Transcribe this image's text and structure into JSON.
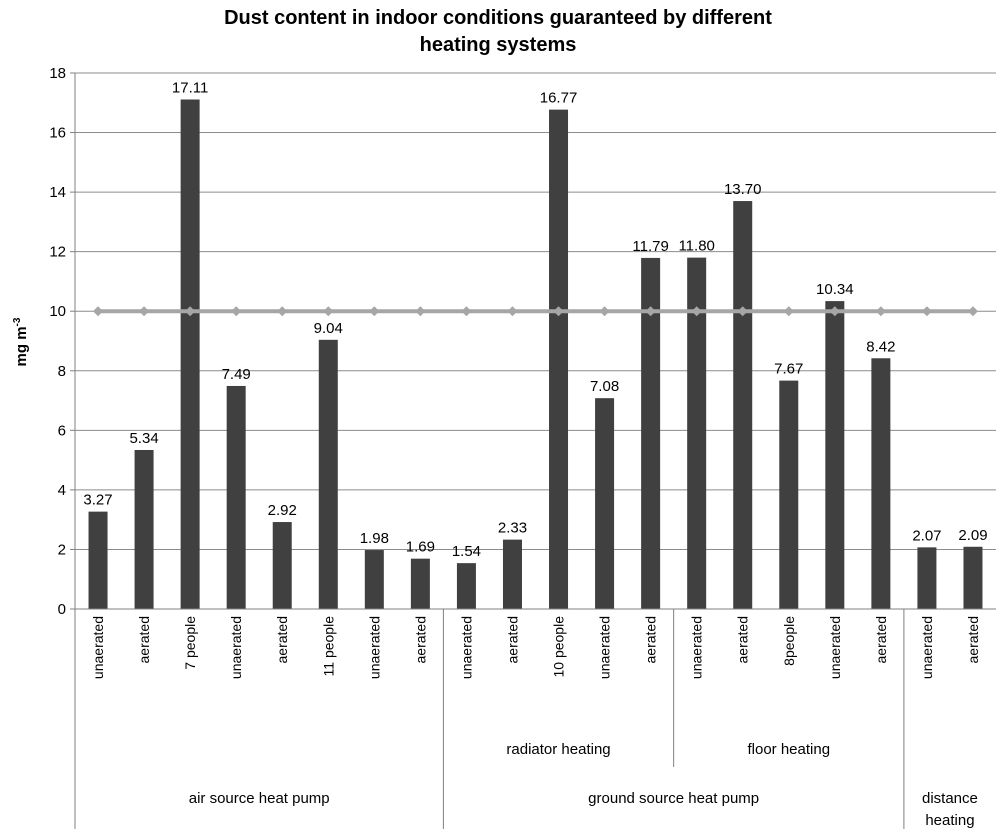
{
  "chart_data": {
    "type": "bar",
    "title_line1": "Dust content in indoor conditions guaranteed by different",
    "title_line2": "heating systems",
    "ylabel": "mg m",
    "ylabel_sup": "-3",
    "ylim": [
      0,
      18
    ],
    "yticks": [
      0,
      2,
      4,
      6,
      8,
      10,
      12,
      14,
      16,
      18
    ],
    "grid": true,
    "categories": [
      "unaerated",
      "aerated",
      "7 people",
      "unaerated",
      "aerated",
      "11 people",
      "unaerated",
      "aerated",
      "unaerated",
      "aerated",
      "10 people",
      "unaerated",
      "aerated",
      "unaerated",
      "aerated",
      "8people",
      "unaerated",
      "aerated",
      "unaerated",
      "aerated"
    ],
    "values": [
      3.27,
      5.34,
      17.11,
      7.49,
      2.92,
      9.04,
      1.98,
      1.69,
      1.54,
      2.33,
      16.77,
      7.08,
      11.79,
      11.8,
      13.7,
      7.67,
      10.34,
      8.42,
      2.07,
      2.09
    ],
    "value_labels": [
      "3.27",
      "5.34",
      "17.11",
      "7.49",
      "2.92",
      "9.04",
      "1.98",
      "1.69",
      "1.54",
      "2.33",
      "16.77",
      "7.08",
      "11.79",
      "11.80",
      "13.70",
      "7.67",
      "10.34",
      "8.42",
      "2.07",
      "2.09"
    ],
    "limit_line": {
      "value": 10,
      "color": "#a6a6a6"
    },
    "bar_color": "#404040",
    "subgroups": [
      {
        "label": "radiator heating",
        "start": 8,
        "end": 12
      },
      {
        "label": "floor heating",
        "start": 13,
        "end": 17
      }
    ],
    "groups": [
      {
        "label": "air source heat pump",
        "start": 0,
        "end": 7
      },
      {
        "label": "ground source heat pump",
        "start": 8,
        "end": 17
      },
      {
        "label_line1": "distance",
        "label_line2": "heating",
        "start": 18,
        "end": 19
      }
    ]
  }
}
